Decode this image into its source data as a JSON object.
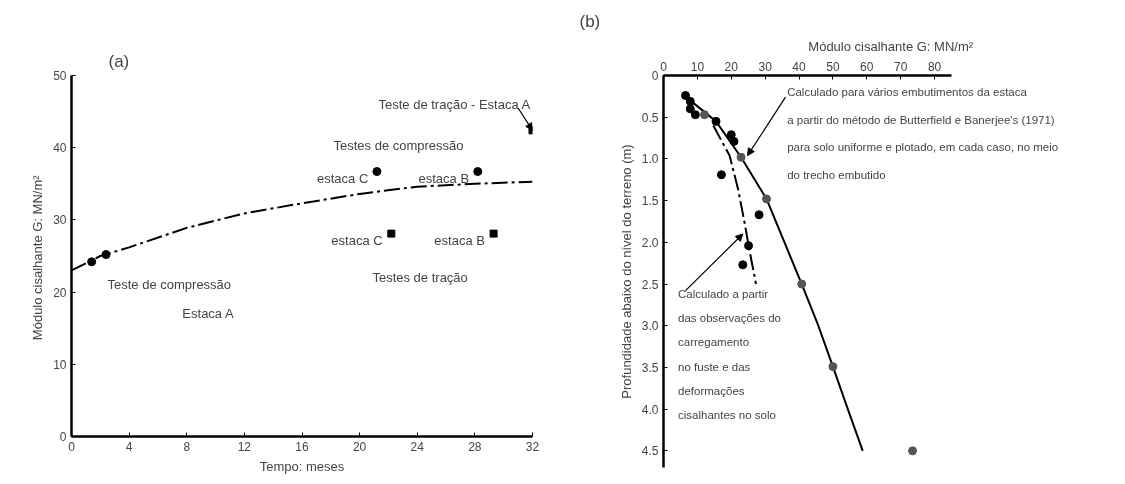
{
  "chart_data": [
    {
      "type": "scatter",
      "title": "(a)",
      "xlabel": "Tempo: meses",
      "ylabel": "Módulo cisalhante G:  MN/m²",
      "xlim": [
        0,
        32
      ],
      "ylim": [
        0,
        50
      ],
      "xticks": [
        0,
        4,
        8,
        12,
        16,
        20,
        24,
        28,
        32
      ],
      "yticks": [
        0,
        10,
        20,
        30,
        40,
        50
      ],
      "grid": false,
      "series": [
        {
          "type": "line",
          "x": [
            0,
            2,
            4,
            8,
            12,
            16,
            20,
            24,
            28,
            32
          ],
          "values": [
            23,
            25,
            26.2,
            28.9,
            30.9,
            32.3,
            33.6,
            34.6,
            35.0,
            35.3
          ],
          "color": "#000000",
          "line_style": "dashed",
          "marker": "none"
        },
        {
          "x": [
            1.4,
            2.4,
            21.2,
            28.2
          ],
          "values": [
            24.2,
            25.2,
            36.7,
            36.7
          ],
          "color": "#000000",
          "marker": "circle"
        },
        {
          "x": [
            22.2,
            29.3,
            32
          ],
          "values": [
            28.1,
            28.1,
            42.4
          ],
          "color": "#000000",
          "marker": "square"
        }
      ],
      "annotations": [
        {
          "text": "Teste de tração - Estaca A",
          "x": 32,
          "y": 42.4
        },
        "Testes de compressão",
        "estaca C",
        "estaca B",
        "estaca C",
        "estaca B",
        "Testes de tração",
        "Teste de compressão",
        "Estaca A"
      ]
    },
    {
      "type": "scatter",
      "title": "(b)",
      "xlabel": "Módulo cisalhante G:  MN/m²",
      "ylabel": "Profundidade abaixo do nível do terreno (m)",
      "xlim": [
        0,
        85
      ],
      "ylim": [
        4.7,
        0
      ],
      "xticks": [
        0,
        10,
        20,
        30,
        40,
        50,
        60,
        70,
        80
      ],
      "yticks": [
        0,
        0.5,
        {
          "value": 1,
          "label": "1.0"
        },
        1.5,
        {
          "value": 2,
          "label": "2.0"
        },
        2.5,
        {
          "value": 3,
          "label": "3.0"
        },
        3.5,
        {
          "value": 4,
          "label": "4.0"
        },
        4.5
      ],
      "grid": false,
      "series": [
        {
          "type": "line",
          "x": [
            5.5,
            15.5,
            22.9,
            30.4,
            36.5,
            40.8,
            45.7,
            50,
            54.4,
            58.8
          ],
          "values": [
            0.22,
            0.55,
            0.98,
            1.48,
            2.08,
            2.5,
            3.0,
            3.49,
            4.0,
            4.5
          ],
          "color": "#000000",
          "line_style": "solid",
          "marker": "none"
        },
        {
          "type": "line",
          "x": [
            14.7,
            19.5,
            22,
            23.9,
            25.3,
            27.3
          ],
          "values": [
            0.6,
            0.96,
            1.36,
            1.76,
            2.08,
            2.5
          ],
          "color": "#000000",
          "line_style": "dashed",
          "marker": "none"
        },
        {
          "x": [
            6.5,
            7.9,
            7.9,
            9.4,
            15.5,
            20,
            20.8,
            17.1,
            28.2,
            25.1,
            23.4
          ],
          "values": [
            0.24,
            0.31,
            0.4,
            0.47,
            0.55,
            0.71,
            0.79,
            1.19,
            1.67,
            2.04,
            2.27
          ],
          "color": "#000000",
          "marker": "circle"
        },
        {
          "x": [
            12.1,
            22.9,
            30.4,
            40.8,
            50,
            73.5
          ],
          "values": [
            0.47,
            0.98,
            1.48,
            2.5,
            3.49,
            4.5
          ],
          "color": "#555555",
          "marker": "circle"
        }
      ],
      "annotations": [
        {
          "text": "Calculado para vários embutimentos da estaca",
          "x": 24.8,
          "y": 0.96
        },
        "a partir do método de Butterfield e Banerjee's (1971)",
        "para solo uniforme e plotado, em cada caso, no meio",
        "do trecho embutido",
        {
          "text": "Calculado a partir",
          "x": 23.4,
          "y": 1.9
        },
        "das observações do",
        "carregamento",
        "no fuste e das",
        "deformações",
        "cisalhantes no solo"
      ]
    }
  ]
}
